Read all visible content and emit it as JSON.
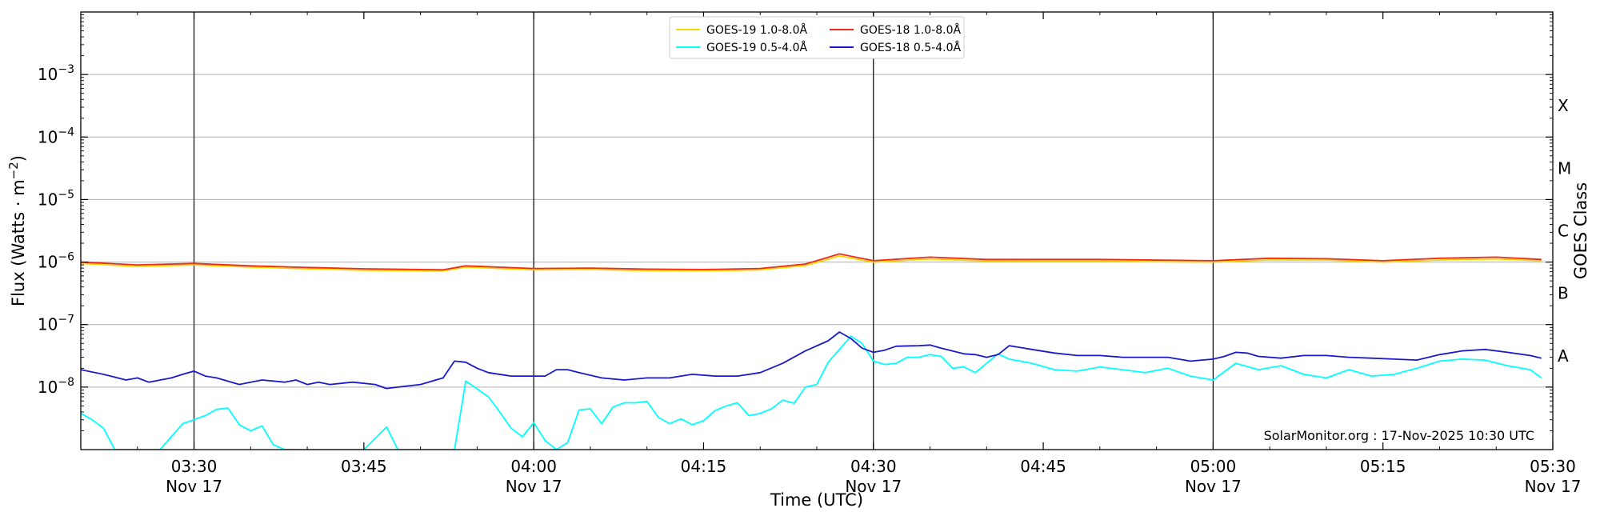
{
  "chart_data": {
    "type": "line",
    "xlabel": "Time (UTC)",
    "ylabel": "Flux (Watts · m⁻²)",
    "y2label": "GOES Class",
    "yscale": "log",
    "ylim": [
      1e-09,
      0.01
    ],
    "xlim": [
      "2025-11-17 03:20",
      "2025-11-17 05:30"
    ],
    "grid": "horizontal major gridlines",
    "legend": "top-center",
    "credit": "SolarMonitor.org : 17-Nov-2025 10:30 UTC",
    "y_ticks": [
      {
        "value": 1e-08,
        "base": "10",
        "exp": "−8"
      },
      {
        "value": 1e-07,
        "base": "10",
        "exp": "−7"
      },
      {
        "value": 1e-06,
        "base": "10",
        "exp": "−6"
      },
      {
        "value": 1e-05,
        "base": "10",
        "exp": "−5"
      },
      {
        "value": 0.0001,
        "base": "10",
        "exp": "−4"
      },
      {
        "value": 0.001,
        "base": "10",
        "exp": "−3"
      }
    ],
    "x_ticks": [
      {
        "time": "03:30",
        "date": "Nov 17"
      },
      {
        "time": "03:45",
        "date": ""
      },
      {
        "time": "04:00",
        "date": "Nov 17"
      },
      {
        "time": "04:15",
        "date": ""
      },
      {
        "time": "04:30",
        "date": "Nov 17"
      },
      {
        "time": "04:45",
        "date": ""
      },
      {
        "time": "05:00",
        "date": "Nov 17"
      },
      {
        "time": "05:15",
        "date": ""
      },
      {
        "time": "05:30",
        "date": "Nov 17"
      }
    ],
    "vlines": [
      "03:30",
      "04:00",
      "04:30",
      "05:00"
    ],
    "goes_classes": [
      {
        "label": "A",
        "value": 3.16e-08
      },
      {
        "label": "B",
        "value": 3.16e-07
      },
      {
        "label": "C",
        "value": 3.16e-06
      },
      {
        "label": "M",
        "value": 3.16e-05
      },
      {
        "label": "X",
        "value": 0.000316
      }
    ],
    "series": [
      {
        "name": "GOES-19 1.0-8.0Å",
        "color": "#FFD700",
        "x": [
          "03:20",
          "03:25",
          "03:30",
          "03:35",
          "03:40",
          "03:45",
          "03:50",
          "03:52",
          "03:54",
          "04:00",
          "04:05",
          "04:10",
          "04:15",
          "04:20",
          "04:24",
          "04:27",
          "04:30",
          "04:35",
          "04:40",
          "04:45",
          "04:50",
          "05:00",
          "05:05",
          "05:10",
          "05:15",
          "05:20",
          "05:25",
          "05:29"
        ],
        "values": [
          9.5e-07,
          8.5e-07,
          9e-07,
          8.3e-07,
          7.8e-07,
          7.4e-07,
          7.2e-07,
          7.2e-07,
          8.3e-07,
          7.5e-07,
          7.6e-07,
          7.3e-07,
          7.2e-07,
          7.5e-07,
          8.8e-07,
          1.25e-06,
          1e-06,
          1.12e-06,
          1.04e-06,
          1.03e-06,
          1.03e-06,
          1e-06,
          1.08e-06,
          1.08e-06,
          1e-06,
          1.08e-06,
          1.12e-06,
          1.05e-06
        ]
      },
      {
        "name": "GOES-18 1.0-8.0Å",
        "color": "#EE2A1E",
        "x": [
          "03:20",
          "03:25",
          "03:30",
          "03:35",
          "03:40",
          "03:45",
          "03:50",
          "03:52",
          "03:54",
          "04:00",
          "04:05",
          "04:10",
          "04:15",
          "04:20",
          "04:24",
          "04:27",
          "04:30",
          "04:35",
          "04:40",
          "04:45",
          "04:50",
          "05:00",
          "05:05",
          "05:10",
          "05:15",
          "05:20",
          "05:25",
          "05:29"
        ],
        "values": [
          1e-06,
          9e-07,
          9.5e-07,
          8.7e-07,
          8.2e-07,
          7.8e-07,
          7.6e-07,
          7.5e-07,
          8.7e-07,
          7.9e-07,
          8e-07,
          7.7e-07,
          7.6e-07,
          7.9e-07,
          9.3e-07,
          1.35e-06,
          1.05e-06,
          1.2e-06,
          1.1e-06,
          1.1e-06,
          1.1e-06,
          1.05e-06,
          1.15e-06,
          1.13e-06,
          1.05e-06,
          1.15e-06,
          1.2e-06,
          1.1e-06
        ]
      },
      {
        "name": "GOES-19 0.5-4.0Å",
        "color": "#00FFFF",
        "x": [
          "03:20",
          "03:21",
          "03:22",
          "03:23",
          "03:27",
          "03:29",
          "03:31",
          "03:32",
          "03:33",
          "03:34",
          "03:35",
          "03:36",
          "03:37",
          "03:38",
          "03:40",
          "03:45",
          "03:47",
          "03:48",
          "03:49",
          "03:53",
          "03:54",
          "03:56",
          "03:57",
          "03:58",
          "03:59",
          "04:00",
          "04:01",
          "04:02",
          "04:03",
          "04:04",
          "04:05",
          "04:06",
          "04:07",
          "04:08",
          "04:09",
          "04:10",
          "04:11",
          "04:12",
          "04:13",
          "04:14",
          "04:15",
          "04:16",
          "04:17",
          "04:18",
          "04:19",
          "04:20",
          "04:21",
          "04:22",
          "04:23",
          "04:24",
          "04:25",
          "04:26",
          "04:27",
          "04:28",
          "04:29",
          "04:30",
          "04:31",
          "04:32",
          "04:33",
          "04:34",
          "04:35",
          "04:36",
          "04:37",
          "04:38",
          "04:39",
          "04:40",
          "04:41",
          "04:42",
          "04:44",
          "04:46",
          "04:48",
          "04:50",
          "04:52",
          "04:54",
          "04:56",
          "04:58",
          "05:00",
          "05:02",
          "05:04",
          "05:06",
          "05:08",
          "05:10",
          "05:12",
          "05:14",
          "05:16",
          "05:18",
          "05:20",
          "05:22",
          "05:24",
          "05:26",
          "05:28",
          "05:29"
        ],
        "values": [
          3.8e-09,
          3e-09,
          2.2e-09,
          1e-09,
          1e-09,
          2.6e-09,
          3.5e-09,
          4.4e-09,
          4.6e-09,
          2.5e-09,
          2e-09,
          2.4e-09,
          1.2e-09,
          1e-09,
          1e-09,
          1e-09,
          2.3e-09,
          1e-09,
          1e-09,
          1e-09,
          1.25e-08,
          7e-09,
          4e-09,
          2.2e-09,
          1.6e-09,
          2.7e-09,
          1.4e-09,
          1e-09,
          1.3e-09,
          4.3e-09,
          4.5e-09,
          2.6e-09,
          4.8e-09,
          5.6e-09,
          5.6e-09,
          5.9e-09,
          3.3e-09,
          2.6e-09,
          3.1e-09,
          2.5e-09,
          2.9e-09,
          4.2e-09,
          5e-09,
          5.6e-09,
          3.5e-09,
          3.8e-09,
          4.5e-09,
          6.2e-09,
          5.5e-09,
          1e-08,
          1.1e-08,
          2.5e-08,
          4e-08,
          6.5e-08,
          5e-08,
          2.6e-08,
          2.3e-08,
          2.4e-08,
          3e-08,
          3e-08,
          3.3e-08,
          3.1e-08,
          2e-08,
          2.1e-08,
          1.7e-08,
          2.4e-08,
          3.4e-08,
          2.8e-08,
          2.4e-08,
          1.9e-08,
          1.8e-08,
          2.1e-08,
          1.9e-08,
          1.7e-08,
          2e-08,
          1.5e-08,
          1.3e-08,
          2.4e-08,
          1.9e-08,
          2.2e-08,
          1.6e-08,
          1.4e-08,
          1.9e-08,
          1.5e-08,
          1.6e-08,
          2e-08,
          2.6e-08,
          2.8e-08,
          2.7e-08,
          2.2e-08,
          1.9e-08,
          1.4e-08
        ]
      },
      {
        "name": "GOES-18 0.5-4.0Å",
        "color": "#1A1ACC",
        "x": [
          "03:20",
          "03:22",
          "03:24",
          "03:25",
          "03:26",
          "03:28",
          "03:29",
          "03:30",
          "03:31",
          "03:32",
          "03:34",
          "03:35",
          "03:36",
          "03:38",
          "03:39",
          "03:40",
          "03:41",
          "03:42",
          "03:44",
          "03:46",
          "03:47",
          "03:48",
          "03:50",
          "03:52",
          "03:53",
          "03:54",
          "03:55",
          "03:56",
          "03:58",
          "04:00",
          "04:01",
          "04:02",
          "04:03",
          "04:04",
          "04:06",
          "04:08",
          "04:10",
          "04:12",
          "04:14",
          "04:16",
          "04:18",
          "04:20",
          "04:22",
          "04:24",
          "04:26",
          "04:27",
          "04:28",
          "04:29",
          "04:30",
          "04:31",
          "04:32",
          "04:34",
          "04:35",
          "04:36",
          "04:38",
          "04:39",
          "04:40",
          "04:41",
          "04:42",
          "04:44",
          "04:46",
          "04:48",
          "04:50",
          "04:52",
          "04:54",
          "04:56",
          "04:58",
          "05:00",
          "05:01",
          "05:02",
          "05:03",
          "05:04",
          "05:06",
          "05:08",
          "05:10",
          "05:12",
          "05:14",
          "05:16",
          "05:18",
          "05:20",
          "05:22",
          "05:24",
          "05:26",
          "05:28",
          "05:29"
        ],
        "values": [
          1.9e-08,
          1.6e-08,
          1.3e-08,
          1.4e-08,
          1.2e-08,
          1.4e-08,
          1.6e-08,
          1.8e-08,
          1.5e-08,
          1.4e-08,
          1.1e-08,
          1.2e-08,
          1.3e-08,
          1.2e-08,
          1.3e-08,
          1.1e-08,
          1.2e-08,
          1.1e-08,
          1.2e-08,
          1.1e-08,
          9.5e-09,
          1e-08,
          1.1e-08,
          1.4e-08,
          2.6e-08,
          2.5e-08,
          2e-08,
          1.7e-08,
          1.5e-08,
          1.5e-08,
          1.5e-08,
          1.9e-08,
          1.9e-08,
          1.7e-08,
          1.4e-08,
          1.3e-08,
          1.4e-08,
          1.4e-08,
          1.6e-08,
          1.5e-08,
          1.5e-08,
          1.7e-08,
          2.4e-08,
          3.8e-08,
          5.5e-08,
          7.6e-08,
          6e-08,
          4.2e-08,
          3.6e-08,
          3.9e-08,
          4.5e-08,
          4.6e-08,
          4.7e-08,
          4.2e-08,
          3.4e-08,
          3.3e-08,
          3e-08,
          3.3e-08,
          4.6e-08,
          4e-08,
          3.5e-08,
          3.2e-08,
          3.2e-08,
          3e-08,
          3e-08,
          3e-08,
          2.6e-08,
          2.8e-08,
          3.1e-08,
          3.6e-08,
          3.5e-08,
          3.1e-08,
          2.9e-08,
          3.2e-08,
          3.2e-08,
          3e-08,
          2.9e-08,
          2.8e-08,
          2.7e-08,
          3.3e-08,
          3.8e-08,
          4e-08,
          3.6e-08,
          3.2e-08,
          2.9e-08
        ]
      }
    ]
  }
}
